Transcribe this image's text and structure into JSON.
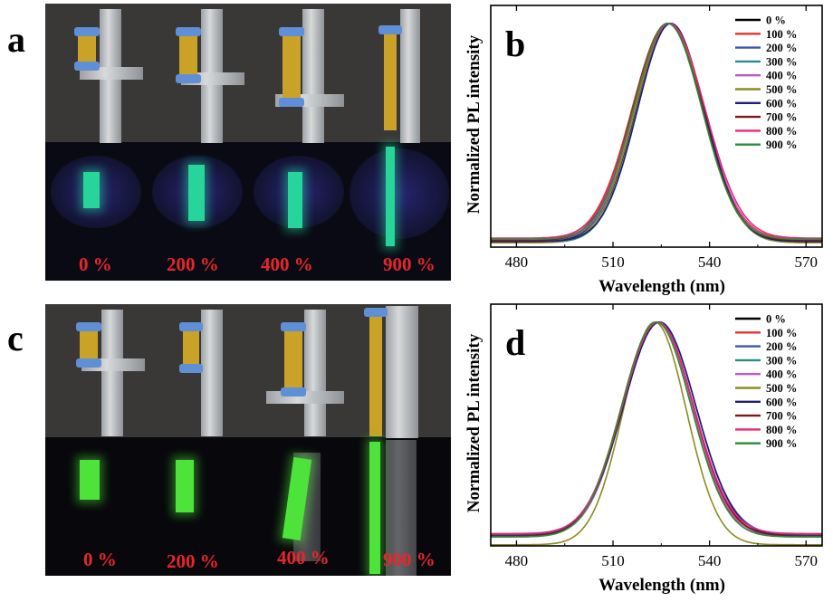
{
  "panels": {
    "a": {
      "letter": "a",
      "labels": [
        "0 %",
        "200 %",
        "400 %",
        "900 %"
      ]
    },
    "b": {
      "letter": "b"
    },
    "c": {
      "letter": "c",
      "labels": [
        "0 %",
        "200 %",
        "400 %",
        "900 %"
      ]
    },
    "d": {
      "letter": "d"
    }
  },
  "colors": {
    "0 %": "#000000",
    "100 %": "#e8302a",
    "200 %": "#3b55b0",
    "300 %": "#2a8c8c",
    "400 %": "#c058c8",
    "500 %": "#8c8c1e",
    "600 %": "#1e1e78",
    "700 %": "#7a1a1a",
    "800 %": "#e8287a",
    "900 %": "#2a8c3a"
  },
  "chart_data": [
    {
      "panel": "b",
      "type": "line",
      "xlabel": "Wavelength (nm)",
      "ylabel": "Normalized PL intensity",
      "xlim": [
        472,
        575
      ],
      "ylim": [
        0,
        1.08
      ],
      "xticks": [
        480,
        510,
        540,
        570
      ],
      "grid": false,
      "legend_position": "top-right",
      "series": [
        {
          "name": "0 %",
          "peak": 527.5,
          "fwhm": 24.5,
          "baseline": 0.03
        },
        {
          "name": "100 %",
          "peak": 527.0,
          "fwhm": 26.0,
          "baseline": 0.035
        },
        {
          "name": "200 %",
          "peak": 527.5,
          "fwhm": 25.0,
          "baseline": 0.03
        },
        {
          "name": "300 %",
          "peak": 528.0,
          "fwhm": 24.5,
          "baseline": 0.02
        },
        {
          "name": "400 %",
          "peak": 527.5,
          "fwhm": 25.5,
          "baseline": 0.03
        },
        {
          "name": "500 %",
          "peak": 527.5,
          "fwhm": 25.0,
          "baseline": 0.02
        },
        {
          "name": "600 %",
          "peak": 528.0,
          "fwhm": 24.5,
          "baseline": 0.025
        },
        {
          "name": "700 %",
          "peak": 527.0,
          "fwhm": 25.5,
          "baseline": 0.03
        },
        {
          "name": "800 %",
          "peak": 527.5,
          "fwhm": 26.0,
          "baseline": 0.04
        },
        {
          "name": "900 %",
          "peak": 527.0,
          "fwhm": 25.0,
          "baseline": 0.035
        }
      ]
    },
    {
      "panel": "d",
      "type": "line",
      "xlabel": "Wavelength (nm)",
      "ylabel": "Normalized PL intensity",
      "xlim": [
        472,
        575
      ],
      "ylim": [
        0,
        1.08
      ],
      "xticks": [
        480,
        510,
        540,
        570
      ],
      "grid": false,
      "legend_position": "top-right",
      "series": [
        {
          "name": "0 %",
          "peak": 524.0,
          "fwhm": 26.0,
          "baseline": 0.045
        },
        {
          "name": "100 %",
          "peak": 523.5,
          "fwhm": 25.5,
          "baseline": 0.05
        },
        {
          "name": "200 %",
          "peak": 524.5,
          "fwhm": 26.5,
          "baseline": 0.05
        },
        {
          "name": "300 %",
          "peak": 524.0,
          "fwhm": 26.0,
          "baseline": 0.04
        },
        {
          "name": "400 %",
          "peak": 524.0,
          "fwhm": 25.5,
          "baseline": 0.045
        },
        {
          "name": "500 %",
          "peak": 523.0,
          "fwhm": 23.0,
          "baseline": 0.005
        },
        {
          "name": "600 %",
          "peak": 524.5,
          "fwhm": 26.5,
          "baseline": 0.045
        },
        {
          "name": "700 %",
          "peak": 524.0,
          "fwhm": 26.0,
          "baseline": 0.045
        },
        {
          "name": "800 %",
          "peak": 524.0,
          "fwhm": 26.0,
          "baseline": 0.055
        },
        {
          "name": "900 %",
          "peak": 523.5,
          "fwhm": 25.5,
          "baseline": 0.04
        }
      ]
    }
  ]
}
